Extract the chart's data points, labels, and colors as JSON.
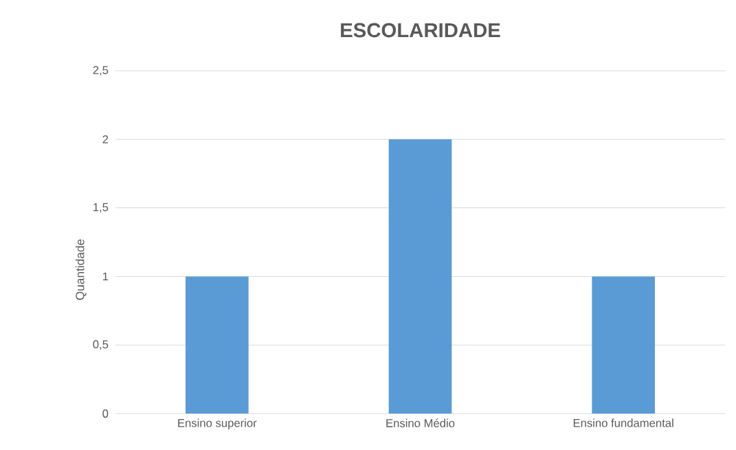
{
  "chart_data": {
    "type": "bar",
    "title": "ESCOLARIDADE",
    "ylabel": "Quantidade",
    "categories": [
      "Ensino superior",
      "Ensino Médio",
      "Ensino fundamental"
    ],
    "values": [
      1,
      2,
      1
    ],
    "color": "#5b9bd5",
    "ylim": [
      0,
      2.5
    ],
    "yticks": [
      0,
      {
        "value": 0.5,
        "label": "0,5"
      },
      1,
      {
        "value": 1.5,
        "label": "1,5"
      },
      2,
      {
        "value": 2.5,
        "label": "2,5"
      }
    ],
    "grid": "y"
  }
}
